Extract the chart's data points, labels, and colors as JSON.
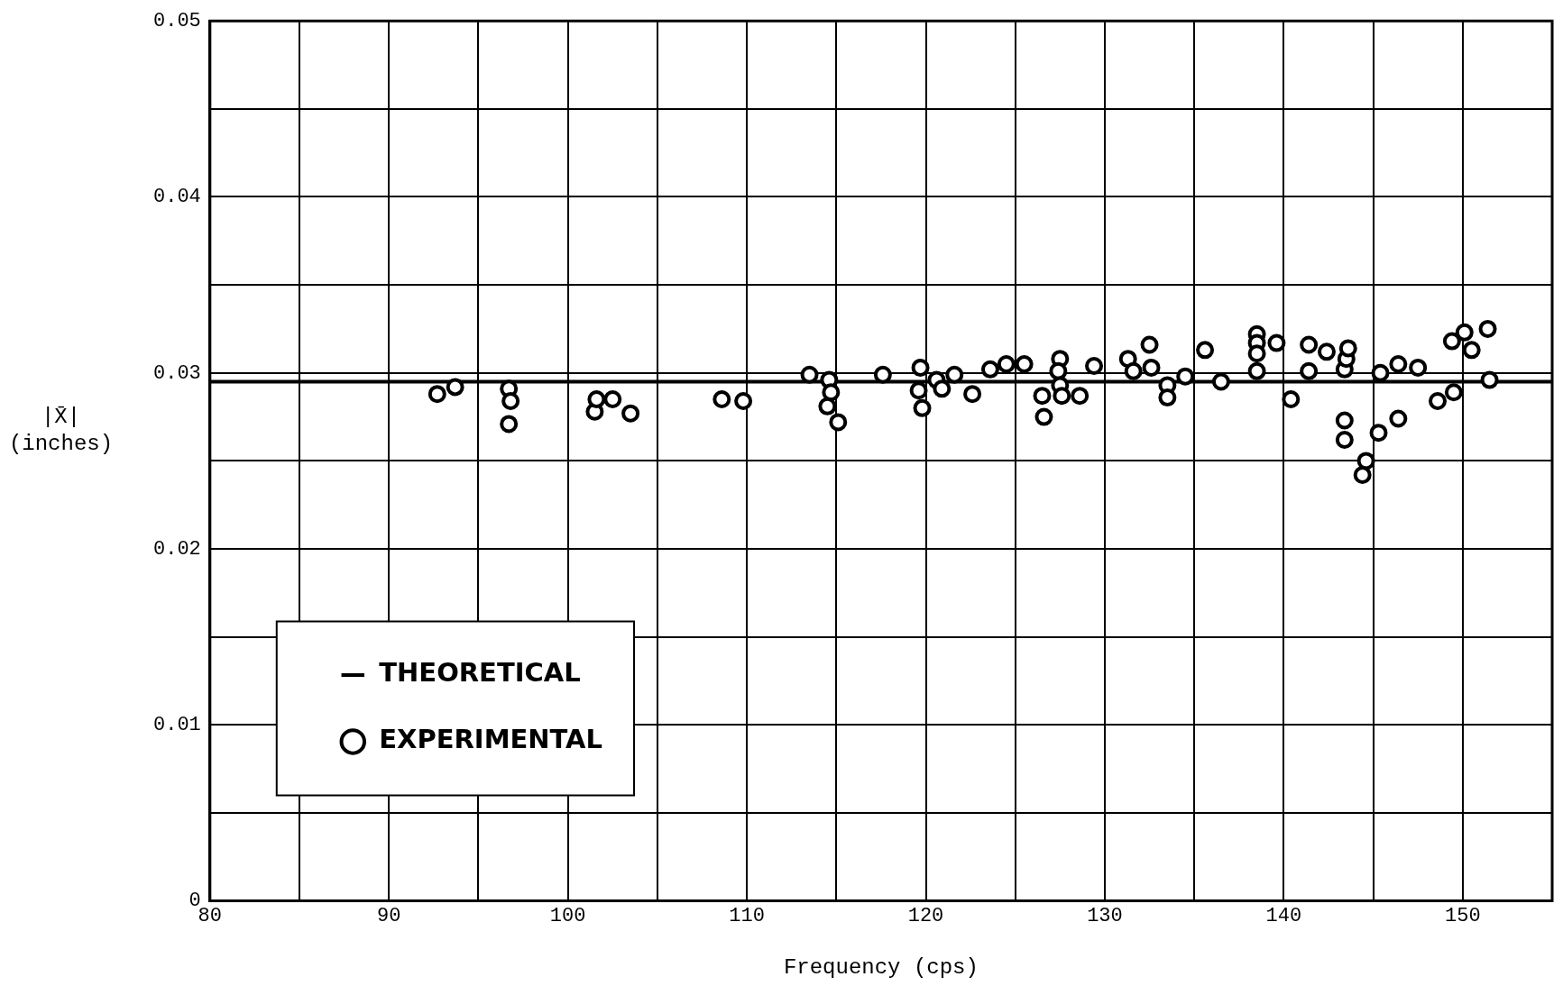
{
  "chart_data": {
    "type": "scatter",
    "xlabel": "Frequency (cps)",
    "ylabel": "|X̄| (inches)",
    "xlim": [
      80,
      155
    ],
    "ylim": [
      0,
      0.05
    ],
    "xticks": [
      80,
      {
        "value": 85,
        "label": null
      },
      90,
      {
        "value": 95,
        "label": null
      },
      100,
      {
        "value": 105,
        "label": null
      },
      110,
      {
        "value": 115,
        "label": null
      },
      120,
      {
        "value": 125,
        "label": null
      },
      130,
      {
        "value": 135,
        "label": null
      },
      140,
      {
        "value": 145,
        "label": null
      },
      150,
      {
        "value": 155,
        "label": null
      }
    ],
    "yticks": [
      0,
      {
        "value": 0.005,
        "label": null
      },
      0.01,
      {
        "value": 0.015,
        "label": null
      },
      0.02,
      {
        "value": 0.025,
        "label": null
      },
      0.03,
      {
        "value": 0.035,
        "label": null
      },
      0.04,
      {
        "value": 0.045,
        "label": null
      },
      0.05
    ],
    "grid": true,
    "legend": "bottom left",
    "series": [
      {
        "name": "THEORETICAL",
        "type": "line",
        "color": "#000000",
        "marker": "none",
        "line_style": "solid",
        "x": [
          80,
          155
        ],
        "values": [
          0.0295,
          0.0295
        ]
      },
      {
        "name": "EXPERIMENTAL",
        "type": "scatter",
        "color": "#000000",
        "marker": "circle",
        "x": [
          92.7,
          93.7,
          96.7,
          96.8,
          96.7,
          101.5,
          101.6,
          102.5,
          103.5,
          108.6,
          109.8,
          113.5,
          114.6,
          114.7,
          114.5,
          115.1,
          117.6,
          119.7,
          119.6,
          119.8,
          120.6,
          120.9,
          121.6,
          122.6,
          123.6,
          124.5,
          125.5,
          126.5,
          126.6,
          127.5,
          127.4,
          127.5,
          127.6,
          128.6,
          129.4,
          131.3,
          131.6,
          132.5,
          132.6,
          133.5,
          133.5,
          134.5,
          135.6,
          136.5,
          138.5,
          138.5,
          138.5,
          138.5,
          139.6,
          140.4,
          141.4,
          141.4,
          142.4,
          143.4,
          143.4,
          143.4,
          143.5,
          143.6,
          144.6,
          144.4,
          145.3,
          145.4,
          146.4,
          146.4,
          147.5,
          148.6,
          149.5,
          149.4,
          150.1,
          150.5,
          151.4,
          151.5
        ],
        "values": [
          0.0288,
          0.0292,
          0.0291,
          0.0284,
          0.0271,
          0.0278,
          0.0285,
          0.0285,
          0.0277,
          0.0285,
          0.0284,
          0.0299,
          0.0296,
          0.0289,
          0.0281,
          0.0272,
          0.0299,
          0.0303,
          0.029,
          0.028,
          0.0296,
          0.0291,
          0.0299,
          0.0288,
          0.0302,
          0.0305,
          0.0305,
          0.0287,
          0.0275,
          0.0308,
          0.0301,
          0.0293,
          0.0287,
          0.0287,
          0.0304,
          0.0308,
          0.0301,
          0.0316,
          0.0303,
          0.0293,
          0.0286,
          0.0298,
          0.0313,
          0.0295,
          0.0322,
          0.0317,
          0.0311,
          0.0301,
          0.0317,
          0.0285,
          0.0316,
          0.0301,
          0.0312,
          0.0273,
          0.0262,
          0.0302,
          0.0308,
          0.0314,
          0.025,
          0.0242,
          0.0266,
          0.03,
          0.0305,
          0.0274,
          0.0303,
          0.0284,
          0.0289,
          0.0318,
          0.0323,
          0.0313,
          0.0325,
          0.0296
        ]
      }
    ]
  }
}
